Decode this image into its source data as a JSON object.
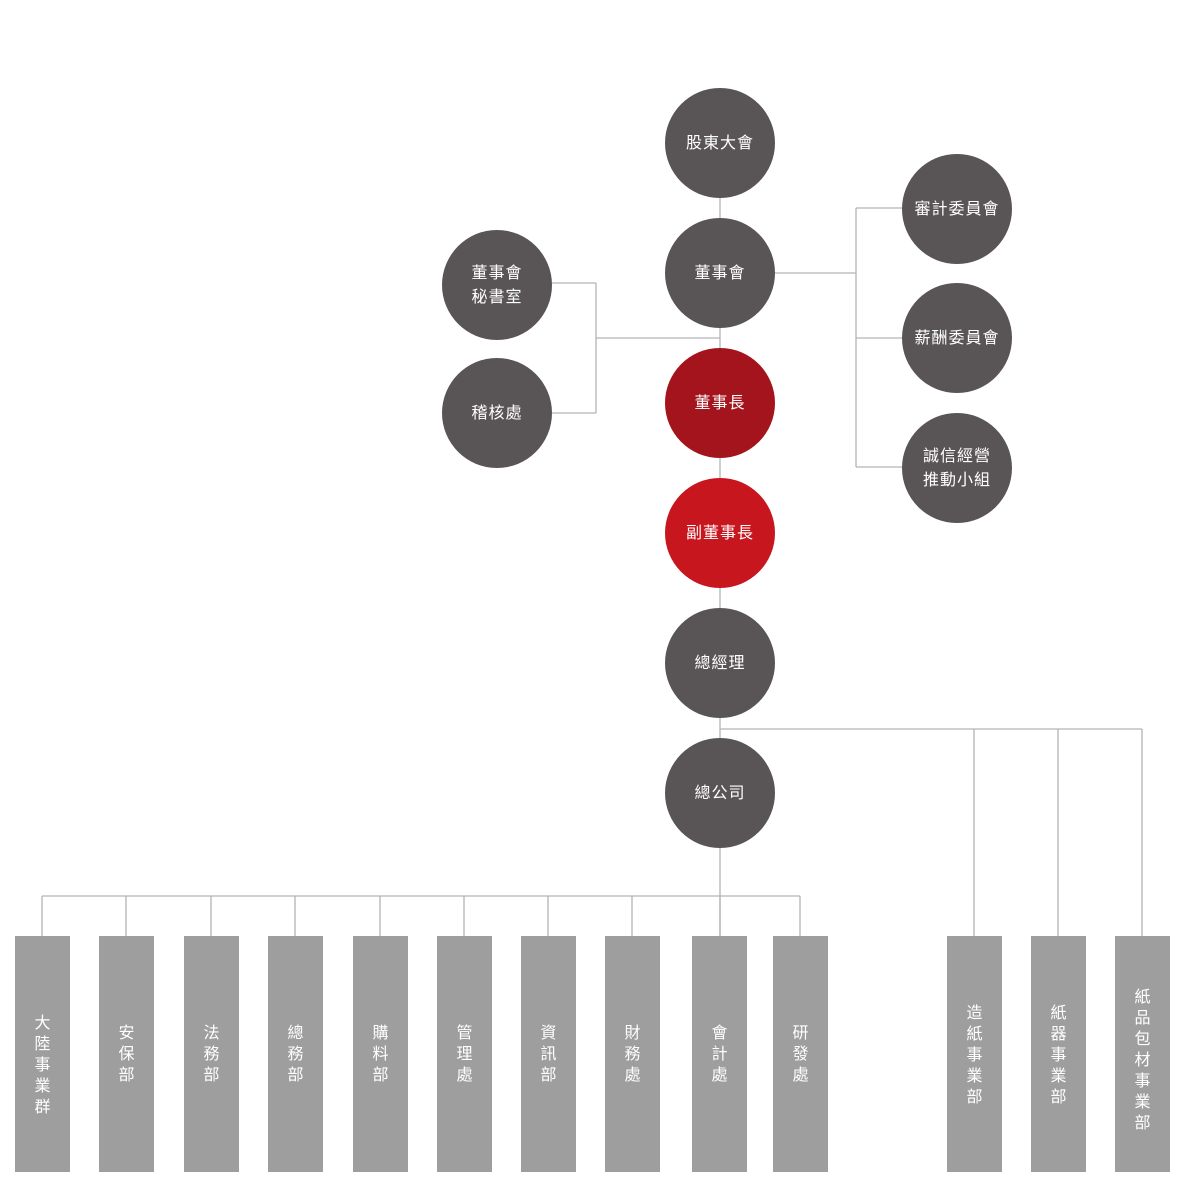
{
  "nodes": {
    "shareholders": "股東大會",
    "board": "董事會",
    "board_secretariat": "董事會\n秘書室",
    "audit_office": "稽核處",
    "audit_committee": "審計委員會",
    "compensation_committee": "薪酬委員會",
    "integrity_group": "誠信經營\n推動小組",
    "chairman": "董事長",
    "vice_chairman": "副董事長",
    "general_manager": "總經理",
    "head_office": "總公司"
  },
  "departments": [
    "大陸事業群",
    "安保部",
    "法務部",
    "總務部",
    "購料部",
    "管理處",
    "資訊部",
    "財務處",
    "會計處",
    "研發處"
  ],
  "business_units": [
    "造紙事業部",
    "紙器事業部",
    "紙品包材事業部"
  ],
  "colors": {
    "node": "#595556",
    "chairman": "#a3141d",
    "vice_chairman": "#c8161f",
    "department": "#9e9e9f",
    "connector": "#b3b3b3"
  }
}
